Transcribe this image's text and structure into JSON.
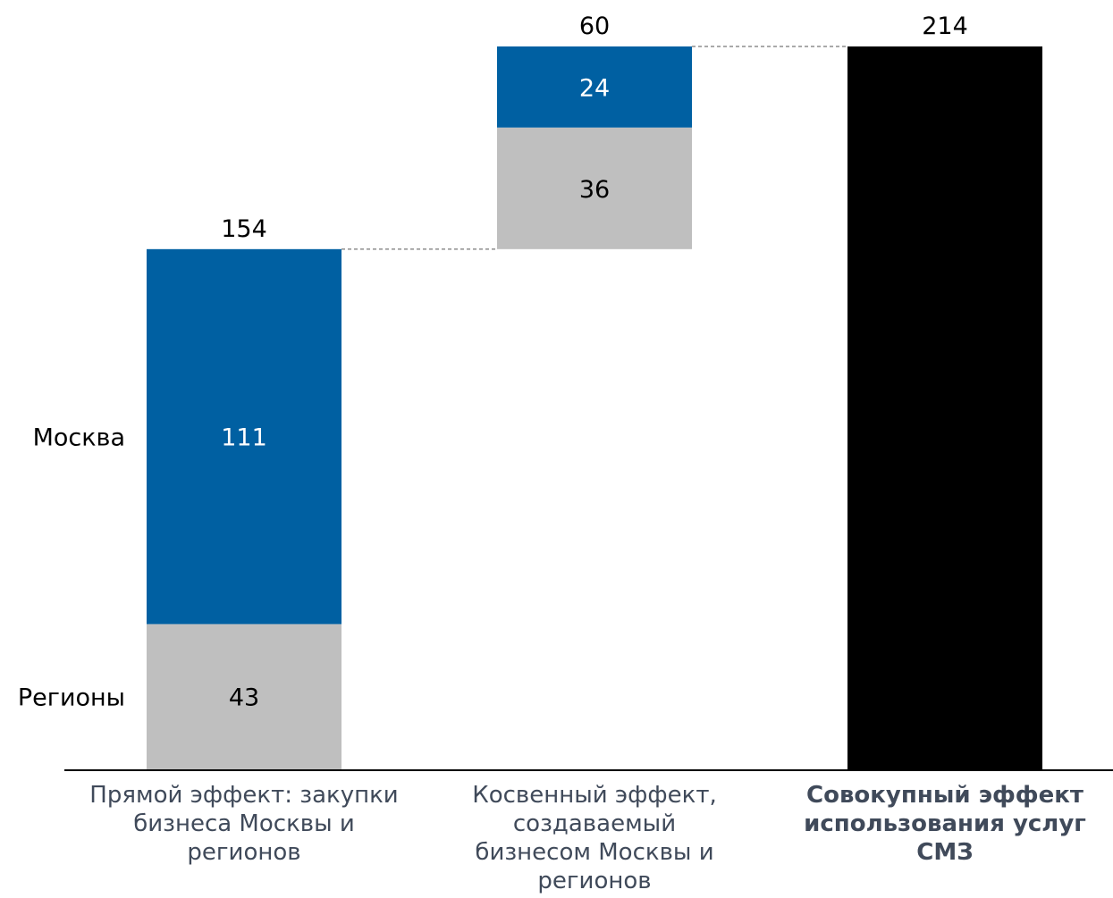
{
  "chart_data": {
    "type": "bar",
    "subtype": "stacked-waterfall",
    "categories": [
      [
        "Прямой эффект: закупки",
        "бизнеса Москвы и",
        "регионов"
      ],
      [
        "Косвенный эффект,",
        "создаваемый",
        "бизнесом Москвы и",
        "регионов"
      ],
      [
        "Совокупный эффект",
        "использования услуг",
        "СМЗ"
      ]
    ],
    "category_bold": [
      false,
      false,
      true
    ],
    "series": [
      {
        "name": "Регионы",
        "values": [
          43,
          36,
          null
        ],
        "color": "#bfbfbf",
        "label_color": "#000000"
      },
      {
        "name": "Москва",
        "values": [
          111,
          24,
          null
        ],
        "color": "#0060a2",
        "label_color": "#ffffff"
      },
      {
        "name": "",
        "values": [
          null,
          null,
          214
        ],
        "color": "#000000",
        "label_color": "#ffffff"
      }
    ],
    "bases": [
      0,
      154,
      0
    ],
    "totals": [
      "154",
      "60",
      "214"
    ],
    "segment_labels": [
      [
        "43",
        "111"
      ],
      [
        "36",
        "24"
      ],
      []
    ],
    "connectors": "dashed",
    "legend_position": "left",
    "ylim": [
      0,
      214
    ],
    "grid": false
  }
}
